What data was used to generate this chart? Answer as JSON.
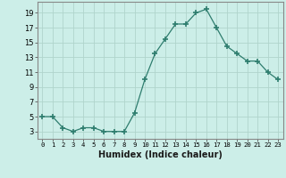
{
  "x": [
    0,
    1,
    2,
    3,
    4,
    5,
    6,
    7,
    8,
    9,
    10,
    11,
    12,
    13,
    14,
    15,
    16,
    17,
    18,
    19,
    20,
    21,
    22,
    23
  ],
  "y": [
    5,
    5,
    3.5,
    3,
    3.5,
    3.5,
    3,
    3,
    3,
    5.5,
    10,
    13.5,
    15.5,
    17.5,
    17.5,
    19,
    19.5,
    17,
    14.5,
    13.5,
    12.5,
    12.5,
    11,
    10
  ],
  "line_color": "#2e7d6e",
  "marker": "+",
  "marker_size": 4.0,
  "bg_color": "#cceee8",
  "grid_color": "#b0d4cc",
  "xlabel": "Humidex (Indice chaleur)",
  "xlim": [
    -0.5,
    23.5
  ],
  "ylim": [
    2,
    20.5
  ],
  "yticks": [
    3,
    5,
    7,
    9,
    11,
    13,
    15,
    17,
    19
  ],
  "xticks": [
    0,
    1,
    2,
    3,
    4,
    5,
    6,
    7,
    8,
    9,
    10,
    11,
    12,
    13,
    14,
    15,
    16,
    17,
    18,
    19,
    20,
    21,
    22,
    23
  ],
  "xtick_labels": [
    "0",
    "1",
    "2",
    "3",
    "4",
    "5",
    "6",
    "7",
    "8",
    "9",
    "10",
    "11",
    "12",
    "13",
    "14",
    "15",
    "16",
    "17",
    "18",
    "19",
    "20",
    "21",
    "22",
    "23"
  ]
}
